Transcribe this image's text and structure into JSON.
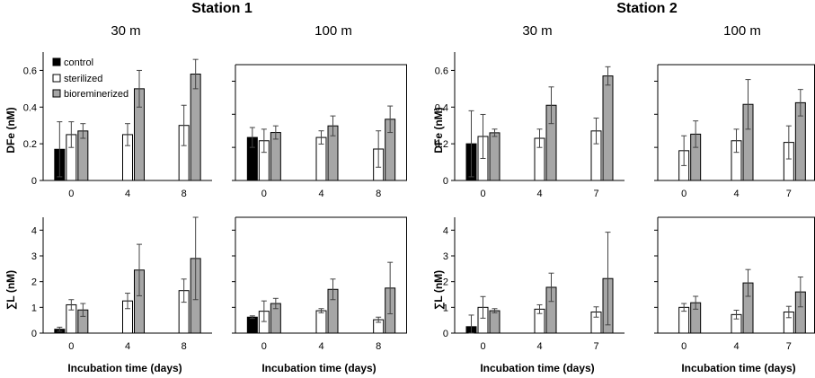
{
  "figure": {
    "station_titles": [
      "Station 1",
      "Station 2"
    ],
    "depth_labels": [
      "30 m",
      "100 m",
      "30 m",
      "100 m"
    ],
    "y_label_top": "DFe (nM)",
    "y_label_bottom": "∑L (nM)",
    "x_label": "Incubation time (days)"
  },
  "legend": [
    {
      "label": "control",
      "color": "#000000"
    },
    {
      "label": "sterilized",
      "color": "#ffffff"
    },
    {
      "label": "bioreminerized",
      "color": "#a6a6a6"
    }
  ],
  "chart_data": [
    {
      "type": "bar",
      "station": "Station 1",
      "depth": "30 m",
      "ylabel": "DFe (nM)",
      "ylim": [
        0,
        0.7
      ],
      "yticks": [
        "0",
        "0.2",
        "0.4",
        "0.6"
      ],
      "categories": [
        "0",
        "4",
        "8"
      ],
      "series": [
        {
          "name": "control",
          "values": [
            0.17,
            null,
            null
          ],
          "errors": [
            0.15,
            null,
            null
          ]
        },
        {
          "name": "sterilized",
          "values": [
            0.25,
            0.25,
            0.3
          ],
          "errors": [
            0.07,
            0.06,
            0.11
          ]
        },
        {
          "name": "bioreminerized",
          "values": [
            0.27,
            0.5,
            0.58
          ],
          "errors": [
            0.04,
            0.1,
            0.08
          ]
        }
      ]
    },
    {
      "type": "bar",
      "station": "Station 1",
      "depth": "100 m",
      "ylabel": "DFe (nM)",
      "ylim": [
        0,
        0.7
      ],
      "yticks": [
        "0",
        "0.2",
        "0.4",
        "0.6"
      ],
      "categories": [
        "0",
        "4",
        "8"
      ],
      "series": [
        {
          "name": "control",
          "values": [
            0.26,
            null,
            null
          ],
          "errors": [
            0.06,
            null,
            null
          ]
        },
        {
          "name": "sterilized",
          "values": [
            0.24,
            0.26,
            0.19
          ],
          "errors": [
            0.07,
            0.04,
            0.11
          ]
        },
        {
          "name": "bioreminerized",
          "values": [
            0.29,
            0.33,
            0.37
          ],
          "errors": [
            0.04,
            0.06,
            0.08
          ]
        }
      ]
    },
    {
      "type": "bar",
      "station": "Station 2",
      "depth": "30 m",
      "ylabel": "DFe (nM)",
      "ylim": [
        0,
        0.7
      ],
      "yticks": [
        "0",
        "0.2",
        "0.4",
        "0.6"
      ],
      "categories": [
        "0",
        "4",
        "7"
      ],
      "series": [
        {
          "name": "control",
          "values": [
            0.2,
            null,
            null
          ],
          "errors": [
            0.18,
            null,
            null
          ]
        },
        {
          "name": "sterilized",
          "values": [
            0.24,
            0.23,
            0.27
          ],
          "errors": [
            0.12,
            0.05,
            0.07
          ]
        },
        {
          "name": "bioreminerized",
          "values": [
            0.26,
            0.41,
            0.57
          ],
          "errors": [
            0.02,
            0.1,
            0.05
          ]
        }
      ]
    },
    {
      "type": "bar",
      "station": "Station 2",
      "depth": "100 m",
      "ylabel": "DFe (nM)",
      "ylim": [
        0,
        0.7
      ],
      "yticks": [
        "0",
        "0.2",
        "0.4",
        "0.6"
      ],
      "categories": [
        "0",
        "4",
        "7"
      ],
      "series": [
        {
          "name": "control",
          "values": [
            null,
            null,
            null
          ],
          "errors": [
            null,
            null,
            null
          ]
        },
        {
          "name": "sterilized",
          "values": [
            0.18,
            0.24,
            0.23
          ],
          "errors": [
            0.09,
            0.07,
            0.1
          ]
        },
        {
          "name": "bioreminerized",
          "values": [
            0.28,
            0.46,
            0.47
          ],
          "errors": [
            0.08,
            0.15,
            0.08
          ]
        }
      ]
    },
    {
      "type": "bar",
      "station": "Station 1",
      "depth": "30 m",
      "ylabel": "∑L (nM)",
      "ylim": [
        0,
        4.5
      ],
      "yticks": [
        "0",
        "1",
        "2",
        "3",
        "4"
      ],
      "categories": [
        "0",
        "4",
        "8"
      ],
      "series": [
        {
          "name": "control",
          "values": [
            0.15,
            null,
            null
          ],
          "errors": [
            0.08,
            null,
            null
          ]
        },
        {
          "name": "sterilized",
          "values": [
            1.1,
            1.25,
            1.65
          ],
          "errors": [
            0.2,
            0.3,
            0.45
          ]
        },
        {
          "name": "bioreminerized",
          "values": [
            0.9,
            2.45,
            2.9
          ],
          "errors": [
            0.25,
            1.0,
            1.6
          ]
        }
      ]
    },
    {
      "type": "bar",
      "station": "Station 1",
      "depth": "100 m",
      "ylabel": "∑L (nM)",
      "ylim": [
        0,
        4.5
      ],
      "yticks": [
        "0",
        "1",
        "2",
        "3",
        "4"
      ],
      "categories": [
        "0",
        "4",
        "8"
      ],
      "series": [
        {
          "name": "control",
          "values": [
            0.62,
            null,
            null
          ],
          "errors": [
            0.05,
            null,
            null
          ]
        },
        {
          "name": "sterilized",
          "values": [
            0.85,
            0.87,
            0.52
          ],
          "errors": [
            0.4,
            0.08,
            0.1
          ]
        },
        {
          "name": "bioreminerized",
          "values": [
            1.15,
            1.7,
            1.75
          ],
          "errors": [
            0.2,
            0.4,
            1.0
          ]
        }
      ]
    },
    {
      "type": "bar",
      "station": "Station 2",
      "depth": "30 m",
      "ylabel": "∑L (nM)",
      "ylim": [
        0,
        4.5
      ],
      "yticks": [
        "0",
        "1",
        "2",
        "3",
        "4"
      ],
      "categories": [
        "0",
        "4",
        "7"
      ],
      "series": [
        {
          "name": "control",
          "values": [
            0.25,
            null,
            null
          ],
          "errors": [
            0.45,
            null,
            null
          ]
        },
        {
          "name": "sterilized",
          "values": [
            1.0,
            0.93,
            0.82
          ],
          "errors": [
            0.42,
            0.17,
            0.2
          ]
        },
        {
          "name": "bioreminerized",
          "values": [
            0.87,
            1.78,
            2.12
          ],
          "errors": [
            0.08,
            0.55,
            1.8
          ]
        }
      ]
    },
    {
      "type": "bar",
      "station": "Station 2",
      "depth": "100 m",
      "ylabel": "∑L (nM)",
      "ylim": [
        0,
        4.5
      ],
      "yticks": [
        "0",
        "1",
        "2",
        "3",
        "4"
      ],
      "categories": [
        "0",
        "4",
        "7"
      ],
      "series": [
        {
          "name": "control",
          "values": [
            null,
            null,
            null
          ],
          "errors": [
            null,
            null,
            null
          ]
        },
        {
          "name": "sterilized",
          "values": [
            1.0,
            0.72,
            0.82
          ],
          "errors": [
            0.15,
            0.17,
            0.22
          ]
        },
        {
          "name": "bioreminerized",
          "values": [
            1.18,
            1.95,
            1.6
          ],
          "errors": [
            0.25,
            0.52,
            0.58
          ]
        }
      ]
    }
  ]
}
